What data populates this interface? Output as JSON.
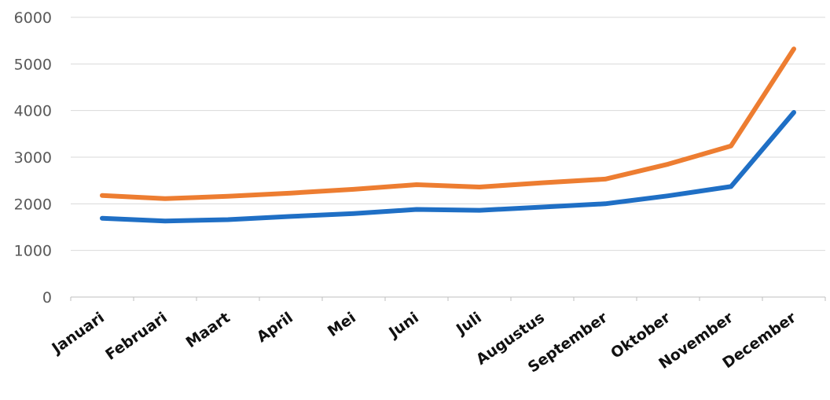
{
  "chart_data": {
    "type": "line",
    "categories": [
      "Januari",
      "Februari",
      "Maart",
      "April",
      "Mei",
      "Juni",
      "Juli",
      "Augustus",
      "September",
      "Oktober",
      "November",
      "December"
    ],
    "series": [
      {
        "color": "#ed7d31",
        "values": [
          2180,
          2110,
          2160,
          2230,
          2310,
          2410,
          2360,
          2450,
          2530,
          2850,
          3240,
          5320
        ]
      },
      {
        "color": "#1f6fc5",
        "values": [
          1690,
          1630,
          1660,
          1730,
          1790,
          1880,
          1860,
          1930,
          2000,
          2170,
          2370,
          3960
        ]
      }
    ],
    "yticks": [
      "0",
      "1000",
      "2000",
      "3000",
      "4000",
      "5000",
      "6000"
    ],
    "ylim": [
      0,
      6000
    ],
    "grid": true,
    "legend": "none"
  }
}
